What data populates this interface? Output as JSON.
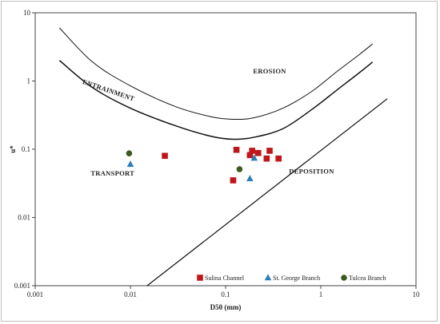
{
  "chart_data": {
    "type": "scatter",
    "title": "",
    "xlabel": "D50 (mm)",
    "ylabel": "u*",
    "x_scale": "log",
    "y_scale": "log",
    "xlim": [
      0.001,
      10
    ],
    "ylim": [
      0.001,
      10
    ],
    "x_ticks": [
      "0.001",
      "0.01",
      "0.1",
      "1",
      "10"
    ],
    "y_ticks": [
      "0.001",
      "0.01",
      "0.1",
      "1",
      "10"
    ],
    "grid": false,
    "legend_position": "bottom-right",
    "series": [
      {
        "name": "Sulina Channel",
        "marker": "square",
        "color": "#c0161b",
        "points": [
          {
            "x": 0.023,
            "y": 0.08
          },
          {
            "x": 0.12,
            "y": 0.035
          },
          {
            "x": 0.13,
            "y": 0.098
          },
          {
            "x": 0.18,
            "y": 0.082
          },
          {
            "x": 0.19,
            "y": 0.095
          },
          {
            "x": 0.22,
            "y": 0.088
          },
          {
            "x": 0.27,
            "y": 0.073
          },
          {
            "x": 0.29,
            "y": 0.095
          },
          {
            "x": 0.36,
            "y": 0.073
          }
        ]
      },
      {
        "name": "St. George Branch",
        "marker": "triangle",
        "color": "#2e7fb8",
        "points": [
          {
            "x": 0.01,
            "y": 0.06
          },
          {
            "x": 0.18,
            "y": 0.037
          },
          {
            "x": 0.2,
            "y": 0.074
          }
        ]
      },
      {
        "name": "Tulcea Branch",
        "marker": "circle",
        "color": "#3d5a1e",
        "points": [
          {
            "x": 0.0097,
            "y": 0.087
          },
          {
            "x": 0.14,
            "y": 0.051
          }
        ]
      }
    ],
    "curves": [
      {
        "name": "erosion-curve",
        "stroke_width": 1,
        "points": [
          [
            0.0018,
            6.0
          ],
          [
            0.004,
            1.9
          ],
          [
            0.01,
            0.85
          ],
          [
            0.03,
            0.42
          ],
          [
            0.07,
            0.3
          ],
          [
            0.12,
            0.275
          ],
          [
            0.2,
            0.29
          ],
          [
            0.4,
            0.4
          ],
          [
            0.8,
            0.7
          ],
          [
            1.5,
            1.4
          ],
          [
            2.5,
            2.4
          ],
          [
            3.5,
            3.5
          ]
        ]
      },
      {
        "name": "entrainment-curve",
        "stroke_width": 1.5,
        "points": [
          [
            0.0018,
            2.0
          ],
          [
            0.004,
            0.8
          ],
          [
            0.01,
            0.4
          ],
          [
            0.03,
            0.22
          ],
          [
            0.07,
            0.155
          ],
          [
            0.12,
            0.14
          ],
          [
            0.2,
            0.15
          ],
          [
            0.4,
            0.2
          ],
          [
            0.8,
            0.38
          ],
          [
            1.5,
            0.75
          ],
          [
            2.5,
            1.3
          ],
          [
            3.5,
            1.9
          ]
        ]
      },
      {
        "name": "deposition-line",
        "stroke_width": 1.2,
        "points": [
          [
            0.015,
            0.001
          ],
          [
            5.0,
            0.55
          ]
        ]
      }
    ],
    "annotations": [
      {
        "name": "erosion-label",
        "text": "EROSION",
        "x": 0.29,
        "y": 1.3,
        "rotate": 0
      },
      {
        "name": "entrainment-label",
        "text": "ENTRAINMENT",
        "x": 0.0058,
        "y": 0.68,
        "rotate": 19
      },
      {
        "name": "transport-label",
        "text": "TRANSPORT",
        "x": 0.0065,
        "y": 0.041,
        "rotate": 0
      },
      {
        "name": "deposition-label",
        "text": "DEPOSITION",
        "x": 0.8,
        "y": 0.044,
        "rotate": 0
      }
    ]
  }
}
